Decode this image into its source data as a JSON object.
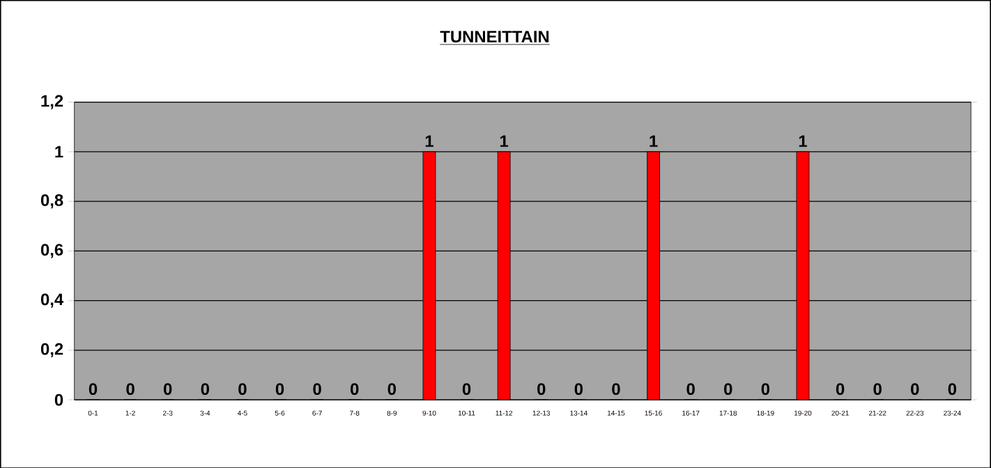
{
  "chart_data": {
    "type": "bar",
    "title": "TUNNEITTAIN",
    "categories": [
      "0-1",
      "1-2",
      "2-3",
      "3-4",
      "4-5",
      "5-6",
      "6-7",
      "7-8",
      "8-9",
      "9-10",
      "10-11",
      "11-12",
      "12-13",
      "13-14",
      "14-15",
      "15-16",
      "16-17",
      "17-18",
      "18-19",
      "19-20",
      "20-21",
      "21-22",
      "22-23",
      "23-24"
    ],
    "values": [
      0,
      0,
      0,
      0,
      0,
      0,
      0,
      0,
      0,
      1,
      0,
      1,
      0,
      0,
      0,
      1,
      0,
      0,
      0,
      1,
      0,
      0,
      0,
      0
    ],
    "color": "#ff0000",
    "ylim": [
      0,
      1.2
    ],
    "yticks": [
      0,
      {
        "value": 0.2,
        "label": "0,2"
      },
      {
        "value": 0.4,
        "label": "0,4"
      },
      {
        "value": 0.6,
        "label": "0,6"
      },
      {
        "value": 0.8,
        "label": "0,8"
      },
      1,
      {
        "value": 1.2,
        "label": "1,2"
      }
    ],
    "grid": "y",
    "data_labels": true
  }
}
